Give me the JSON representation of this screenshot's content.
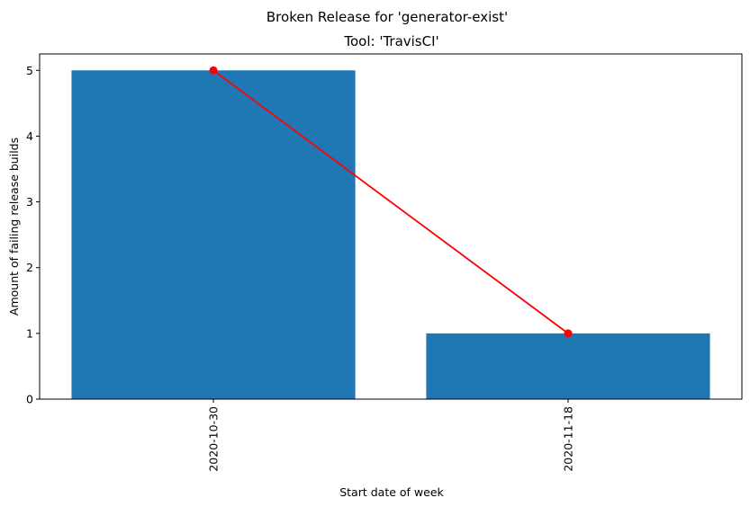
{
  "chart_data": {
    "type": "bar",
    "suptitle": "Broken Release for 'generator-exist'",
    "title": "Tool: 'TravisCI'",
    "xlabel": "Start date of week",
    "ylabel": "Amount of failing release builds",
    "categories": [
      "2020-10-30",
      "2020-11-18"
    ],
    "values": [
      5,
      1
    ],
    "ylim": [
      0,
      5.25
    ],
    "yticks": [
      0,
      1,
      2,
      3,
      4,
      5
    ],
    "bar_color": "#1f77b4",
    "line_color": "#ff0000",
    "line_overlay": true,
    "grid": false,
    "legend": "none"
  }
}
